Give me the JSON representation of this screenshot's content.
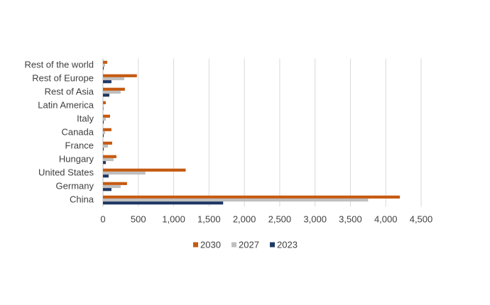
{
  "chart_data": {
    "type": "hbar",
    "categories": [
      "China",
      "Germany",
      "United States",
      "Hungary",
      "France",
      "Canada",
      "Italy",
      "Latin America",
      "Rest of Asia",
      "Rest of Europe",
      "Rest of the world"
    ],
    "series": [
      {
        "name": "2030",
        "color": "#c55a11",
        "values": [
          4200,
          340,
          1170,
          190,
          130,
          120,
          100,
          40,
          310,
          480,
          60
        ]
      },
      {
        "name": "2027",
        "color": "#bfbfbf",
        "values": [
          3750,
          250,
          600,
          150,
          70,
          30,
          40,
          10,
          250,
          300,
          30
        ]
      },
      {
        "name": "2023",
        "color": "#1f3864",
        "values": [
          1700,
          120,
          80,
          40,
          10,
          10,
          10,
          5,
          90,
          120,
          10
        ]
      }
    ],
    "xlim": [
      0,
      4500
    ],
    "xticks": [
      0,
      500,
      {
        "value": 1000,
        "label": "1,000"
      },
      {
        "value": 1500,
        "label": "1,500"
      },
      {
        "value": 2000,
        "label": "2,000"
      },
      {
        "value": 2500,
        "label": "2,500"
      },
      {
        "value": 3000,
        "label": "3,000"
      },
      {
        "value": 3500,
        "label": "3,500"
      },
      {
        "value": 4000,
        "label": "4,000"
      },
      {
        "value": 4500,
        "label": "4,500"
      }
    ],
    "grid": true,
    "legend": "bottom"
  }
}
